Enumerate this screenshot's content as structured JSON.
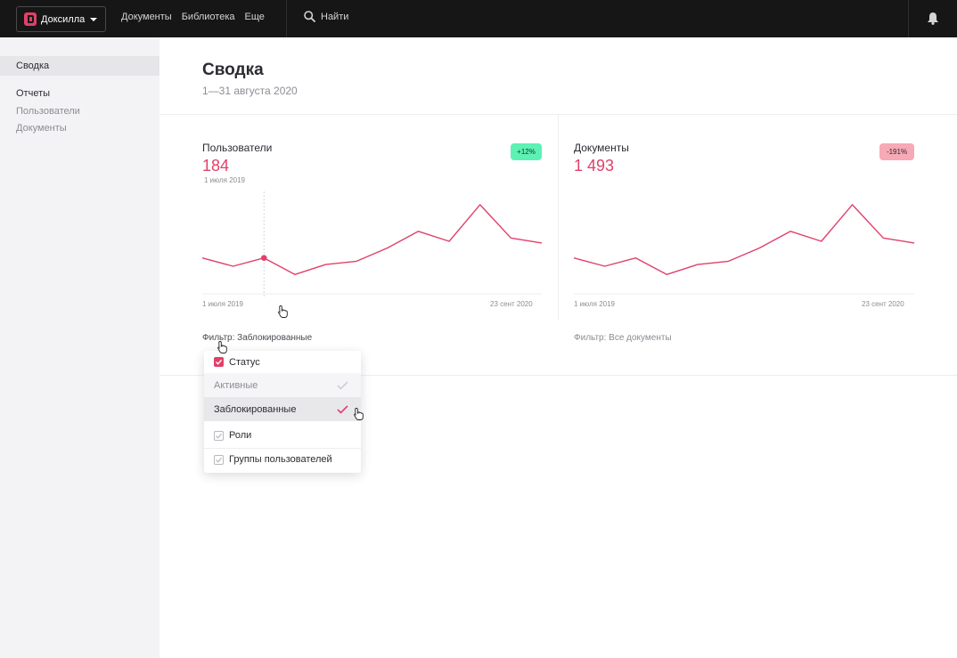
{
  "topbar": {
    "brand": "Доксилла",
    "nav": [
      "Документы",
      "Библиотека",
      "Еще"
    ],
    "search_label": "Найти",
    "icons": {
      "logo": "brand-logo-icon",
      "caret": "chevron-down-icon",
      "search": "search-icon",
      "bell": "bell-icon"
    }
  },
  "sidebar": {
    "items": [
      {
        "label": "Сводка",
        "active": true
      },
      {
        "label": "Отчеты"
      },
      {
        "label": "Пользователи"
      },
      {
        "label": "Документы"
      }
    ]
  },
  "header": {
    "title": "Сводка",
    "subtitle": "1—31 августа 2020"
  },
  "cards": [
    {
      "label": "Пользователи",
      "value": "184",
      "date": "1 июля 2019",
      "badge": "+12%",
      "x_start": "1 июля 2019",
      "x_end": "23 сент 2020",
      "filter": "Фильтр: Заблокированные"
    },
    {
      "label": "Документы",
      "value": "1 493",
      "badge": "-191%",
      "x_start": "1 июля 2019",
      "x_end": "23 сент 2020",
      "filter": "Фильтр: Все документы"
    }
  ],
  "dropdown": {
    "status_label": "Статус",
    "options": [
      "Активные",
      "Заблокированные"
    ],
    "roles_label": "Роли",
    "groups_label": "Группы пользователей"
  },
  "colors": {
    "accent": "#e0406a",
    "badge_up": "#5cf2b4",
    "badge_down": "#f7a9b6",
    "topbar": "#161616",
    "sidebar": "#f3f3f5"
  },
  "chart_data": [
    {
      "type": "line",
      "series": [
        {
          "values": [
            50,
            47.5,
            50,
            45,
            48,
            49,
            53,
            58,
            55,
            66,
            56,
            54.5
          ]
        }
      ],
      "highlight_index": 2,
      "ylim": [
        40,
        70
      ],
      "grid": false
    },
    {
      "type": "line",
      "series": [
        {
          "values": [
            50,
            47.5,
            50,
            45,
            48,
            49,
            53,
            58,
            55,
            66,
            56,
            54.5
          ]
        }
      ],
      "ylim": [
        40,
        70
      ],
      "grid": false
    }
  ]
}
